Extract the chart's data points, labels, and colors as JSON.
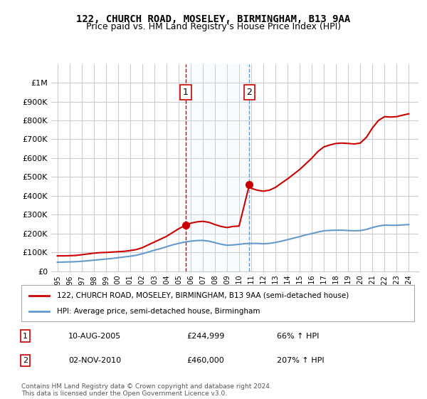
{
  "title1": "122, CHURCH ROAD, MOSELEY, BIRMINGHAM, B13 9AA",
  "title2": "Price paid vs. HM Land Registry's House Price Index (HPI)",
  "red_label": "122, CHURCH ROAD, MOSELEY, BIRMINGHAM, B13 9AA (semi-detached house)",
  "blue_label": "HPI: Average price, semi-detached house, Birmingham",
  "footnote": "Contains HM Land Registry data © Crown copyright and database right 2024.\nThis data is licensed under the Open Government Licence v3.0.",
  "sale1_date": "10-AUG-2005",
  "sale1_price": 244999,
  "sale1_pct": "66%",
  "sale2_date": "02-NOV-2010",
  "sale2_price": 460000,
  "sale2_pct": "207%",
  "ylim": [
    0,
    1100000
  ],
  "yticks": [
    0,
    100000,
    200000,
    300000,
    400000,
    500000,
    600000,
    700000,
    800000,
    900000,
    1000000
  ],
  "ytick_labels": [
    "£0",
    "£100K",
    "£200K",
    "£300K",
    "£400K",
    "£500K",
    "£600K",
    "£700K",
    "£800K",
    "£900K",
    "£1M"
  ],
  "xlim_start": 1994.5,
  "xlim_end": 2024.8,
  "red_color": "#cc0000",
  "blue_color": "#6699cc",
  "marker_color": "#cc0000",
  "sale1_x": 2005.6,
  "sale2_x": 2010.85,
  "red_x": [
    1995,
    1995.5,
    1996,
    1996.5,
    1997,
    1997.5,
    1998,
    1998.5,
    1999,
    1999.5,
    2000,
    2000.5,
    2001,
    2001.5,
    2002,
    2002.5,
    2003,
    2003.5,
    2004,
    2004.5,
    2005,
    2005.6,
    2006,
    2006.5,
    2007,
    2007.5,
    2008,
    2008.5,
    2009,
    2009.5,
    2010,
    2010.85,
    2011,
    2011.5,
    2012,
    2012.5,
    2013,
    2013.5,
    2014,
    2014.5,
    2015,
    2015.5,
    2016,
    2016.5,
    2017,
    2017.5,
    2018,
    2018.5,
    2019,
    2019.5,
    2020,
    2020.5,
    2021,
    2021.5,
    2022,
    2022.5,
    2023,
    2023.5,
    2024
  ],
  "red_y": [
    82000,
    82000,
    83000,
    84000,
    88000,
    92000,
    96000,
    99000,
    100000,
    102000,
    104000,
    106000,
    110000,
    115000,
    125000,
    140000,
    155000,
    170000,
    185000,
    205000,
    225000,
    244999,
    255000,
    262000,
    265000,
    260000,
    248000,
    238000,
    232000,
    238000,
    240000,
    460000,
    440000,
    430000,
    425000,
    430000,
    445000,
    468000,
    490000,
    515000,
    540000,
    570000,
    600000,
    635000,
    660000,
    670000,
    678000,
    680000,
    678000,
    675000,
    680000,
    710000,
    760000,
    800000,
    820000,
    818000,
    820000,
    828000,
    835000
  ],
  "blue_x": [
    1995,
    1995.5,
    1996,
    1996.5,
    1997,
    1997.5,
    1998,
    1998.5,
    1999,
    1999.5,
    2000,
    2000.5,
    2001,
    2001.5,
    2002,
    2002.5,
    2003,
    2003.5,
    2004,
    2004.5,
    2005,
    2005.5,
    2006,
    2006.5,
    2007,
    2007.5,
    2008,
    2008.5,
    2009,
    2009.5,
    2010,
    2010.5,
    2011,
    2011.5,
    2012,
    2012.5,
    2013,
    2013.5,
    2014,
    2014.5,
    2015,
    2015.5,
    2016,
    2016.5,
    2017,
    2017.5,
    2018,
    2018.5,
    2019,
    2019.5,
    2020,
    2020.5,
    2021,
    2021.5,
    2022,
    2022.5,
    2023,
    2023.5,
    2024
  ],
  "blue_y": [
    48000,
    49000,
    50000,
    51000,
    53000,
    56000,
    59000,
    62000,
    65000,
    68000,
    72000,
    76000,
    80000,
    85000,
    93000,
    102000,
    112000,
    120000,
    130000,
    140000,
    148000,
    155000,
    160000,
    163000,
    164000,
    160000,
    152000,
    144000,
    138000,
    140000,
    143000,
    147000,
    148000,
    148000,
    146000,
    148000,
    153000,
    160000,
    168000,
    176000,
    184000,
    193000,
    200000,
    208000,
    215000,
    217000,
    218000,
    218000,
    216000,
    215000,
    216000,
    222000,
    232000,
    240000,
    245000,
    244000,
    244000,
    246000,
    248000
  ],
  "bg_color": "#ffffff",
  "grid_color": "#cccccc",
  "shade_color": "#ddeeff"
}
